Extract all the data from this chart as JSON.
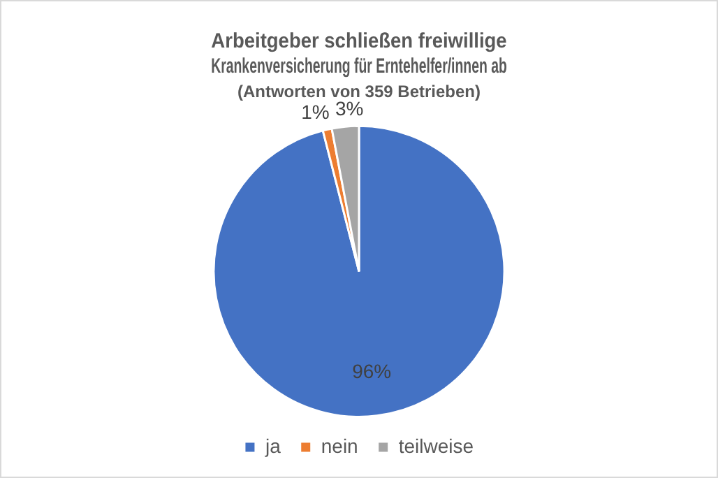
{
  "chart_data": {
    "type": "pie",
    "title": "Arbeitgeber schließen freiwillige Krankenversicherung für Erntehelfer/innen ab",
    "subtitle": "(Antworten von 359 Betrieben)",
    "categories": [
      "ja",
      "nein",
      "teilweise"
    ],
    "values": [
      96,
      1,
      3
    ],
    "colors": [
      "#4472c4",
      "#ed7d31",
      "#a5a5a5"
    ],
    "value_labels": [
      "96%",
      "1%",
      "3%"
    ],
    "legend": "bottom"
  }
}
